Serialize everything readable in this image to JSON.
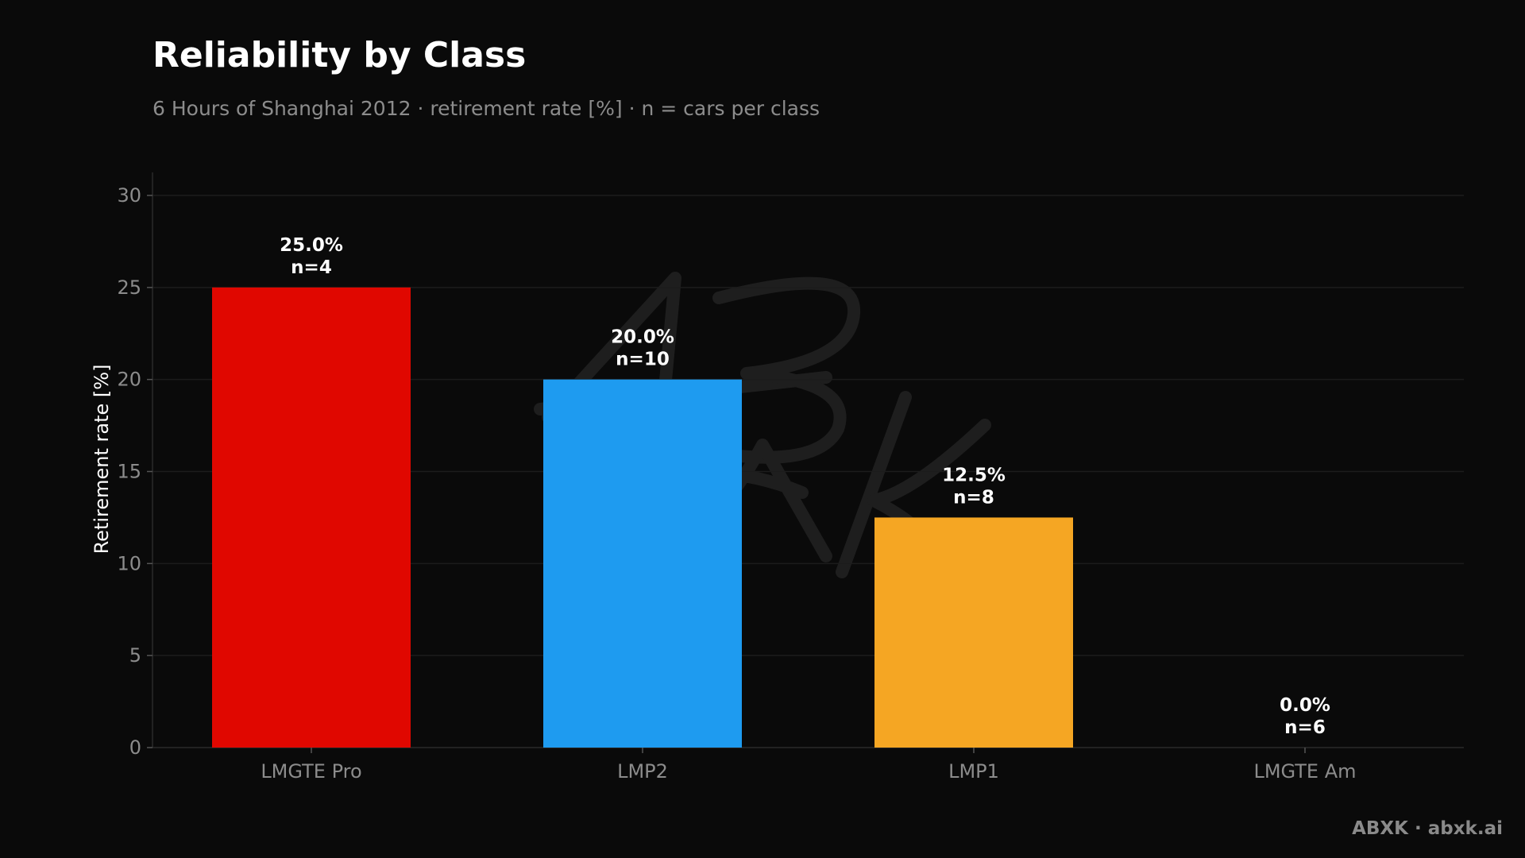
{
  "chart_data": {
    "type": "bar",
    "title": "Reliability by Class",
    "subtitle": "6 Hours of Shanghai 2012 · retirement rate [%] · n = cars per class",
    "xlabel": "",
    "ylabel": "Retirement rate [%]",
    "ylim": [
      0,
      30
    ],
    "yticks": [
      0,
      5,
      10,
      15,
      20,
      25,
      30
    ],
    "grid": true,
    "categories": [
      "LMGTE Pro",
      "LMP2",
      "LMP1",
      "LMGTE Am"
    ],
    "values": [
      25.0,
      20.0,
      12.5,
      0.0
    ],
    "value_labels": [
      "25.0%",
      "20.0%",
      "12.5%",
      "0.0%"
    ],
    "n_labels": [
      "n=4",
      "n=10",
      "n=8",
      "n=6"
    ],
    "colors": [
      "#e00700",
      "#1e9bf0",
      "#f5a623",
      "#8e44ad"
    ]
  },
  "footer": "ABXK · abxk.ai",
  "watermark": "ABXK"
}
